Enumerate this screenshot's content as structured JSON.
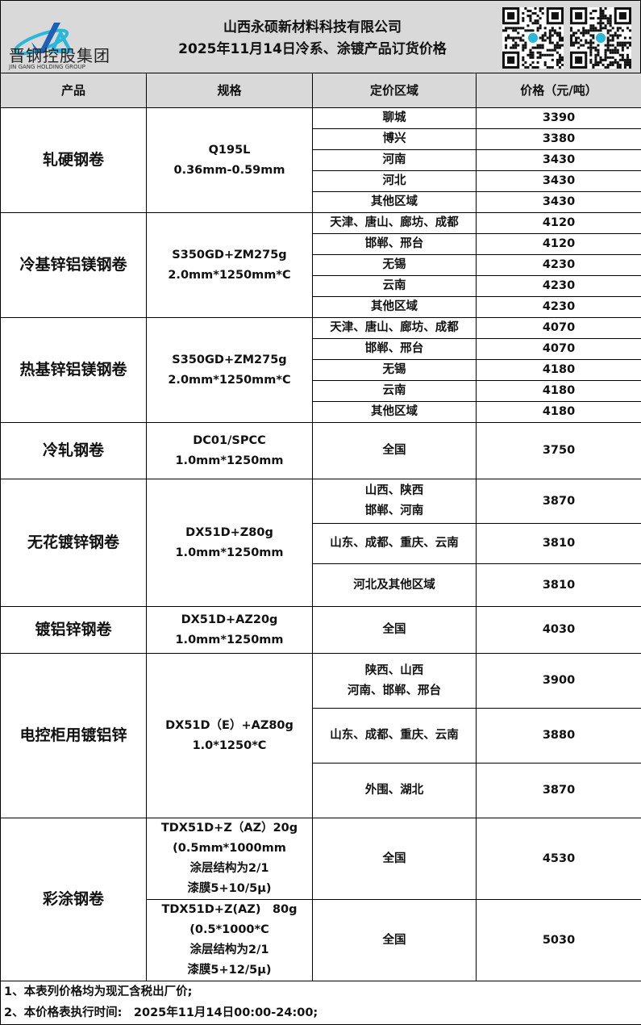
{
  "header": {
    "logo_text": "晋钢控股集团",
    "logo_sub": "JIN GANG HOLDING GROUP",
    "company": "山西永硕新材料科技有限公司",
    "title": "2025年11月14日冷系、涂镀产品订货价格",
    "accent": "#2ab7d9"
  },
  "columns": [
    "产品",
    "规格",
    "定价区域",
    "价格（元/吨）"
  ],
  "products": [
    {
      "name": "轧硬钢卷",
      "specs": [
        {
          "spec": "Q195L\n0.36mm-0.59mm",
          "rows": [
            {
              "region": "聊城",
              "price": "3390"
            },
            {
              "region": "博兴",
              "price": "3380"
            },
            {
              "region": "河南",
              "price": "3430"
            },
            {
              "region": "河北",
              "price": "3430"
            },
            {
              "region": "其他区域",
              "price": "3430"
            }
          ]
        }
      ]
    },
    {
      "name": "冷基锌铝镁钢卷",
      "specs": [
        {
          "spec": "S350GD+ZM275g\n2.0mm*1250mm*C",
          "rows": [
            {
              "region": "天津、唐山、廊坊、成都",
              "price": "4120"
            },
            {
              "region": "邯郸、邢台",
              "price": "4120"
            },
            {
              "region": "无锡",
              "price": "4230"
            },
            {
              "region": "云南",
              "price": "4230"
            },
            {
              "region": "其他区域",
              "price": "4230"
            }
          ]
        }
      ]
    },
    {
      "name": "热基锌铝镁钢卷",
      "specs": [
        {
          "spec": "S350GD+ZM275g\n2.0mm*1250mm*C",
          "rows": [
            {
              "region": "天津、唐山、廊坊、成都",
              "price": "4070"
            },
            {
              "region": "邯郸、邢台",
              "price": "4070"
            },
            {
              "region": "无锡",
              "price": "4180"
            },
            {
              "region": "云南",
              "price": "4180"
            },
            {
              "region": "其他区域",
              "price": "4180"
            }
          ]
        }
      ]
    },
    {
      "name": "冷轧钢卷",
      "specs": [
        {
          "spec": "DC01/SPCC\n1.0mm*1250mm",
          "rows": [
            {
              "region": "全国",
              "price": "3750"
            }
          ]
        }
      ]
    },
    {
      "name": "无花镀锌钢卷",
      "specs": [
        {
          "spec": "DX51D+Z80g\n1.0mm*1250mm",
          "rows": [
            {
              "region": "山西、陕西\n邯郸、河南",
              "price": "3870"
            },
            {
              "region": "山东、成都、重庆、云南",
              "price": "3810"
            },
            {
              "region": "河北及其他区域",
              "price": "3810"
            }
          ]
        }
      ]
    },
    {
      "name": "镀铝锌钢卷",
      "specs": [
        {
          "spec": "DX51D+AZ20g\n1.0mm*1250mm",
          "rows": [
            {
              "region": "全国",
              "price": "4030"
            }
          ]
        }
      ]
    },
    {
      "name": "电控柜用镀铝锌",
      "specs": [
        {
          "spec": "DX51D（E）+AZ80g\n1.0*1250*C",
          "rows": [
            {
              "region": "陕西、山西\n河南、邯郸、邢台",
              "price": "3900"
            },
            {
              "region": "山东、成都、重庆、云南",
              "price": "3880"
            },
            {
              "region": "外围、湖北",
              "price": "3870"
            }
          ]
        }
      ]
    },
    {
      "name": "彩涂钢卷",
      "specs": [
        {
          "spec": "TDX51D+Z（AZ）20g\n(0.5mm*1000mm\n涂层结构为2/1\n漆膜5+10/5μ)",
          "rows": [
            {
              "region": "全国",
              "price": "4530"
            }
          ]
        },
        {
          "spec": "TDX51D+Z(AZ)　80g\n(0.5*1000*C\n涂层结构为2/1\n漆膜5+12/5μ)",
          "rows": [
            {
              "region": "全国",
              "price": "5030"
            }
          ]
        }
      ]
    }
  ],
  "notes": [
    "1、本表列价格均为现汇含税出厂价;",
    "2、本价格表执行时间:　2025年11月14日00:00-24:00;"
  ]
}
